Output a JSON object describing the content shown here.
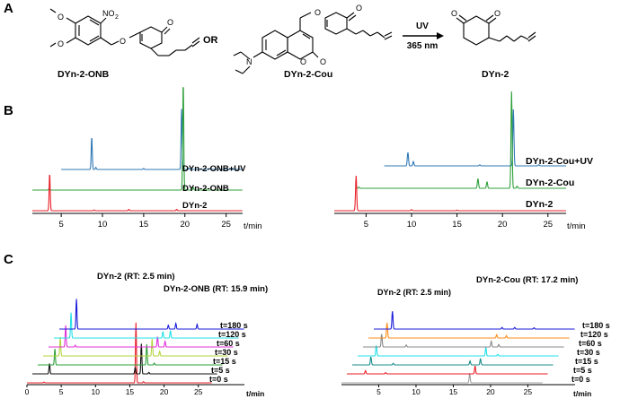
{
  "panels": {
    "a": {
      "letter": "A"
    },
    "b": {
      "letter": "B"
    },
    "c": {
      "letter": "C"
    }
  },
  "scheme": {
    "compounds": [
      "DYn-2-ONB",
      "DYn-2-Cou",
      "DYn-2"
    ],
    "or_label": "OR",
    "arrow_top": "UV",
    "arrow_bottom": "365 nm",
    "atoms": {
      "no2": "NO",
      "no2_sub": "2",
      "o": "O",
      "n": "N"
    }
  },
  "chart_data": [
    {
      "type": "line",
      "panel": "B-left",
      "xlabel": "t/min",
      "x_ticks": [
        5,
        10,
        15,
        20,
        25
      ],
      "xlim": [
        1.5,
        27
      ],
      "series": [
        {
          "name": "DYn-2-ONB+UV",
          "color": "#2f78b5",
          "offset": 2,
          "start": 5,
          "peaks": [
            [
              8.7,
              0.48
            ],
            [
              9.2,
              0.03
            ],
            [
              15.0,
              0.015
            ],
            [
              19.6,
              0.9
            ],
            [
              20.5,
              0.02
            ],
            [
              23.0,
              0.015
            ]
          ]
        },
        {
          "name": "DYn-2-ONB",
          "color": "#2ea03a",
          "offset": 1,
          "start": 1.5,
          "peaks": [
            [
              3.5,
              0.015
            ],
            [
              19.8,
              1.6
            ],
            [
              21.0,
              0.04
            ],
            [
              22.5,
              0.02
            ]
          ]
        },
        {
          "name": "DYn-2",
          "color": "#e8202a",
          "offset": 0,
          "start": 1.5,
          "peaks": [
            [
              3.6,
              0.55
            ],
            [
              9.0,
              0.01
            ],
            [
              13.2,
              0.02
            ],
            [
              19.0,
              0.02
            ]
          ]
        }
      ]
    },
    {
      "type": "line",
      "panel": "B-right",
      "xlabel": "t/min",
      "x_ticks": [
        5,
        10,
        15,
        20,
        25
      ],
      "xlim": [
        1.5,
        27
      ],
      "series": [
        {
          "name": "DYn-2-Cou+UV",
          "color": "#2f78b5",
          "offset": 2,
          "start": 7,
          "peaks": [
            [
              9.6,
              0.25
            ],
            [
              10.2,
              0.08
            ],
            [
              17.5,
              0.02
            ],
            [
              21.2,
              1.05
            ],
            [
              24.0,
              0.02
            ]
          ]
        },
        {
          "name": "DYn-2-Cou",
          "color": "#2ea03a",
          "offset": 1,
          "start": 4,
          "peaks": [
            [
              4.2,
              0.02
            ],
            [
              17.3,
              0.18
            ],
            [
              18.3,
              0.12
            ],
            [
              21.0,
              1.8
            ],
            [
              21.6,
              0.04
            ]
          ]
        },
        {
          "name": "DYn-2",
          "color": "#e8202a",
          "offset": 0,
          "start": 1.5,
          "peaks": [
            [
              3.9,
              0.65
            ],
            [
              10.0,
              0.02
            ],
            [
              15.0,
              0.01
            ]
          ]
        }
      ]
    },
    {
      "type": "line",
      "panel": "C-left",
      "xlabel": "t/min",
      "x_ticks": [
        0,
        5,
        10,
        15,
        20,
        25
      ],
      "xlim": [
        0,
        27
      ],
      "annotations": [
        "DYn-2 (RT: 2.5 min)",
        "DYn-2-ONB (RT: 15.9 min)"
      ],
      "series": [
        {
          "name": "t=0 s",
          "color": "#e8202a",
          "peaks": [
            [
              2.5,
              0.04
            ],
            [
              15.9,
              3.2
            ],
            [
              17.0,
              0.06
            ]
          ]
        },
        {
          "name": "t=5 s",
          "color": "#111111",
          "peaks": [
            [
              2.5,
              0.55
            ],
            [
              15.0,
              0.35
            ],
            [
              15.9,
              1.6
            ],
            [
              17.0,
              0.08
            ]
          ]
        },
        {
          "name": "t=15 s",
          "color": "#2ea03a",
          "peaks": [
            [
              2.5,
              0.85
            ],
            [
              15.9,
              1.1
            ],
            [
              17.0,
              0.1
            ]
          ]
        },
        {
          "name": "t=30 s",
          "color": "#b5d642",
          "peaks": [
            [
              2.5,
              1.0
            ],
            [
              15.9,
              0.9
            ],
            [
              17.0,
              0.25
            ]
          ]
        },
        {
          "name": "t=60 s",
          "color": "#e133d8",
          "peaks": [
            [
              2.5,
              1.15
            ],
            [
              3.9,
              0.1
            ],
            [
              15.9,
              0.55
            ],
            [
              17.0,
              0.3
            ]
          ]
        },
        {
          "name": "t=120 s",
          "color": "#26e0e8",
          "peaks": [
            [
              2.5,
              1.35
            ],
            [
              15.9,
              0.35
            ],
            [
              17.0,
              0.4
            ]
          ]
        },
        {
          "name": "t=180 s",
          "color": "#1a1adb",
          "peaks": [
            [
              2.5,
              1.6
            ],
            [
              15.9,
              0.2
            ],
            [
              17.0,
              0.3
            ],
            [
              20.1,
              0.25
            ]
          ]
        }
      ]
    },
    {
      "type": "line",
      "panel": "C-right",
      "xlabel": "t/min",
      "x_ticks": [
        5,
        10,
        15,
        20,
        25
      ],
      "xlim": [
        0,
        27
      ],
      "annotations": [
        "DYn-2 (RT: 2.5 min)",
        "DYn-2-Cou (RT: 17.2 min)"
      ],
      "series": [
        {
          "name": "t=0 s",
          "color": "#a0a0a0",
          "peaks": [
            [
              17.2,
              0.6
            ]
          ]
        },
        {
          "name": "t=5 s",
          "color": "#e8202a",
          "peaks": [
            [
              2.5,
              0.2
            ],
            [
              5.2,
              0.08
            ],
            [
              17.2,
              0.5
            ]
          ]
        },
        {
          "name": "t=15 s",
          "color": "#1b8c8c",
          "peaks": [
            [
              2.5,
              0.5
            ],
            [
              5.5,
              0.1
            ],
            [
              15.8,
              0.25
            ],
            [
              17.2,
              0.4
            ]
          ]
        },
        {
          "name": "t=30 s",
          "color": "#26e0e8",
          "peaks": [
            [
              2.5,
              0.65
            ],
            [
              17.2,
              0.55
            ],
            [
              18.8,
              0.1
            ]
          ]
        },
        {
          "name": "t=60 s",
          "color": "#888888",
          "peaks": [
            [
              2.5,
              0.8
            ],
            [
              5.8,
              0.12
            ],
            [
              17.2,
              0.35
            ],
            [
              18.2,
              0.15
            ]
          ]
        },
        {
          "name": "t=120 s",
          "color": "#ff8c1a",
          "peaks": [
            [
              2.5,
              0.95
            ],
            [
              17.2,
              0.2
            ],
            [
              18.5,
              0.15
            ]
          ]
        },
        {
          "name": "t=180 s",
          "color": "#1a1adb",
          "peaks": [
            [
              2.5,
              1.1
            ],
            [
              17.2,
              0.1
            ],
            [
              18.9,
              0.1
            ],
            [
              21.5,
              0.08
            ]
          ]
        }
      ]
    }
  ]
}
